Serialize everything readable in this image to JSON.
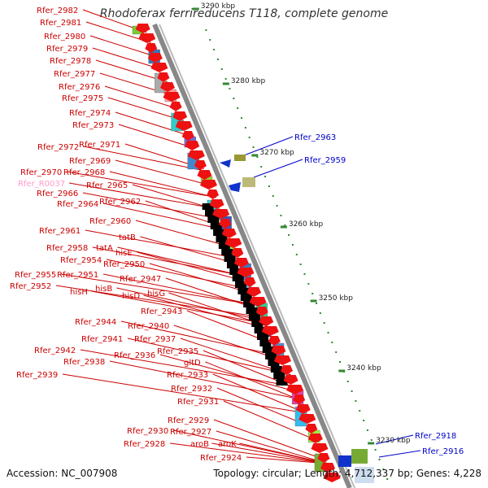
{
  "title": "Rhodoferax ferrireducens T118, complete genome",
  "footer": {
    "accession": "Accession: NC_007908",
    "summary": "Topology: circular; Length: 4,712,337 bp; Genes: 4,228"
  },
  "colors": {
    "forward_label": "#cc0000",
    "reverse_label": "#0000cc",
    "rna_label": "#ff99cc",
    "gene_arrow": "#ee1111",
    "backbone": "#888888"
  },
  "scale_labels": [
    "3290 kbp",
    "3280 kbp",
    "3270 kbp",
    "3260 kbp",
    "3250 kbp",
    "3240 kbp",
    "3230 kbp"
  ],
  "left_labels": [
    "Rfer_2982",
    "Rfer_2981",
    "Rfer_2980",
    "Rfer_2979",
    "Rfer_2978",
    "Rfer_2977",
    "Rfer_2976",
    "Rfer_2975",
    "Rfer_2974",
    "Rfer_2973",
    "Rfer_2972",
    "Rfer_2971",
    "Rfer_2969",
    "Rfer_2970",
    "Rfer_2968",
    "Rfer_R0037",
    "Rfer_2965",
    "Rfer_2966",
    "Rfer_2964",
    "Rfer_2962",
    "Rfer_2960",
    "Rfer_2961",
    "tatB",
    "Rfer_2958",
    "tatA",
    "Rfer_2954",
    "hisE",
    "Rfer_2950",
    "Rfer_2955",
    "Rfer_2951",
    "Rfer_2952",
    "Rfer_2947",
    "hisH",
    "hisB",
    "hisD",
    "hisG",
    "Rfer_2943",
    "Rfer_2944",
    "Rfer_2940",
    "Rfer_2941",
    "Rfer_2937",
    "Rfer_2942",
    "Rfer_2936",
    "Rfer_2935",
    "Rfer_2938",
    "gltD",
    "Rfer_2939",
    "Rfer_2933",
    "Rfer_2932",
    "Rfer_2931",
    "Rfer_2929",
    "Rfer_2930",
    "Rfer_2927",
    "Rfer_2928",
    "aroB",
    "aroK",
    "Rfer_2924"
  ],
  "right_labels": [
    "Rfer_2963",
    "Rfer_2959",
    "Rfer_2918",
    "Rfer_2916"
  ]
}
